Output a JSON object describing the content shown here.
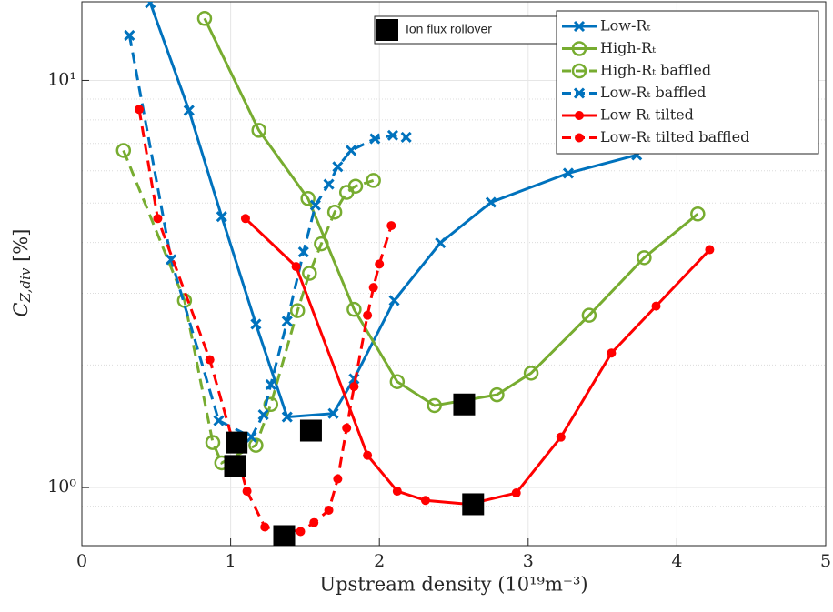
{
  "chart_data": {
    "type": "line",
    "xlabel": "Upstream density (10¹⁹m⁻³)",
    "ylabel": {
      "main": "C",
      "sub": "Z,div",
      "rest": " [%]"
    },
    "xlim": [
      0,
      5
    ],
    "xticks": [
      0,
      1,
      2,
      3,
      4,
      5
    ],
    "ylim": [
      0.72,
      15.6
    ],
    "log_y": true,
    "yticks": [
      {
        "value": 1,
        "label": "10⁰"
      },
      {
        "value": 10,
        "label": "10¹"
      }
    ],
    "minor_yticks": [
      0.8,
      0.9,
      2,
      3,
      4,
      5,
      6,
      7,
      8,
      9
    ],
    "grid": true,
    "legend": "northeast",
    "series": [
      {
        "name": "Low-Rₜ",
        "color": "#0072BD",
        "line": "solid",
        "marker": "x",
        "x": [
          0.46,
          0.72,
          0.94,
          1.17,
          1.38,
          1.69,
          1.83,
          2.1,
          2.41,
          2.75,
          3.27,
          3.73
        ],
        "values": [
          15.5,
          8.44,
          4.63,
          2.52,
          1.49,
          1.52,
          1.85,
          2.88,
          3.99,
          5.02,
          5.92,
          6.56
        ]
      },
      {
        "name": "High-Rₜ",
        "color": "#77AC30",
        "line": "solid",
        "marker": "o",
        "x": [
          0.825,
          1.19,
          1.52,
          1.83,
          2.12,
          2.37,
          2.79,
          3.02,
          3.41,
          3.78,
          4.14
        ],
        "values": [
          14.2,
          7.54,
          5.13,
          2.74,
          1.82,
          1.59,
          1.69,
          1.91,
          2.65,
          3.67,
          4.7
        ]
      },
      {
        "name": "High-Rₜ baffled",
        "color": "#77AC30",
        "line": "dashed",
        "marker": "o",
        "x": [
          0.28,
          0.69,
          0.88,
          0.94,
          1.17,
          1.27,
          1.45,
          1.53,
          1.61,
          1.7,
          1.78,
          1.84,
          1.96
        ],
        "values": [
          6.73,
          2.88,
          1.29,
          1.15,
          1.27,
          1.6,
          2.72,
          3.36,
          3.97,
          4.75,
          5.31,
          5.5,
          5.68
        ]
      },
      {
        "name": "Low-Rₜ baffled",
        "color": "#0072BD",
        "line": "dashed",
        "marker": "x",
        "x": [
          0.32,
          0.6,
          0.92,
          1.14,
          1.22,
          1.27,
          1.38,
          1.49,
          1.57,
          1.66,
          1.72,
          1.81,
          1.97,
          2.09,
          2.18
        ],
        "values": [
          12.9,
          3.63,
          1.46,
          1.33,
          1.51,
          1.79,
          2.56,
          3.79,
          4.94,
          5.56,
          6.14,
          6.73,
          7.19,
          7.33,
          7.25
        ]
      },
      {
        "name": "Low Rₜ tilted",
        "color": "#FF0000",
        "line": "solid",
        "marker": "dot",
        "x": [
          1.1,
          1.44,
          1.92,
          2.12,
          2.31,
          2.6,
          2.92,
          3.22,
          3.56,
          3.86,
          4.22
        ],
        "values": [
          4.58,
          3.49,
          1.2,
          0.98,
          0.93,
          0.91,
          0.97,
          1.33,
          2.14,
          2.79,
          3.84
        ]
      },
      {
        "name": "Low-Rₜ tilted baffled",
        "color": "#FF0000",
        "line": "dashed",
        "marker": "dot",
        "x": [
          0.385,
          0.51,
          0.86,
          1.11,
          1.23,
          1.47,
          1.56,
          1.66,
          1.72,
          1.78,
          1.83,
          1.92,
          1.96,
          2.0,
          2.08
        ],
        "values": [
          8.49,
          4.58,
          2.06,
          0.98,
          0.8,
          0.78,
          0.82,
          0.88,
          1.05,
          1.4,
          1.77,
          2.65,
          3.1,
          3.54,
          4.4
        ]
      },
      {
        "name": "Ion flux rollover",
        "color": "#000000",
        "line": "none",
        "marker": "square",
        "x": [
          1.04,
          1.03,
          1.54,
          1.36,
          2.57,
          2.63
        ],
        "values": [
          1.29,
          1.13,
          1.38,
          0.76,
          1.6,
          0.91
        ]
      }
    ]
  }
}
